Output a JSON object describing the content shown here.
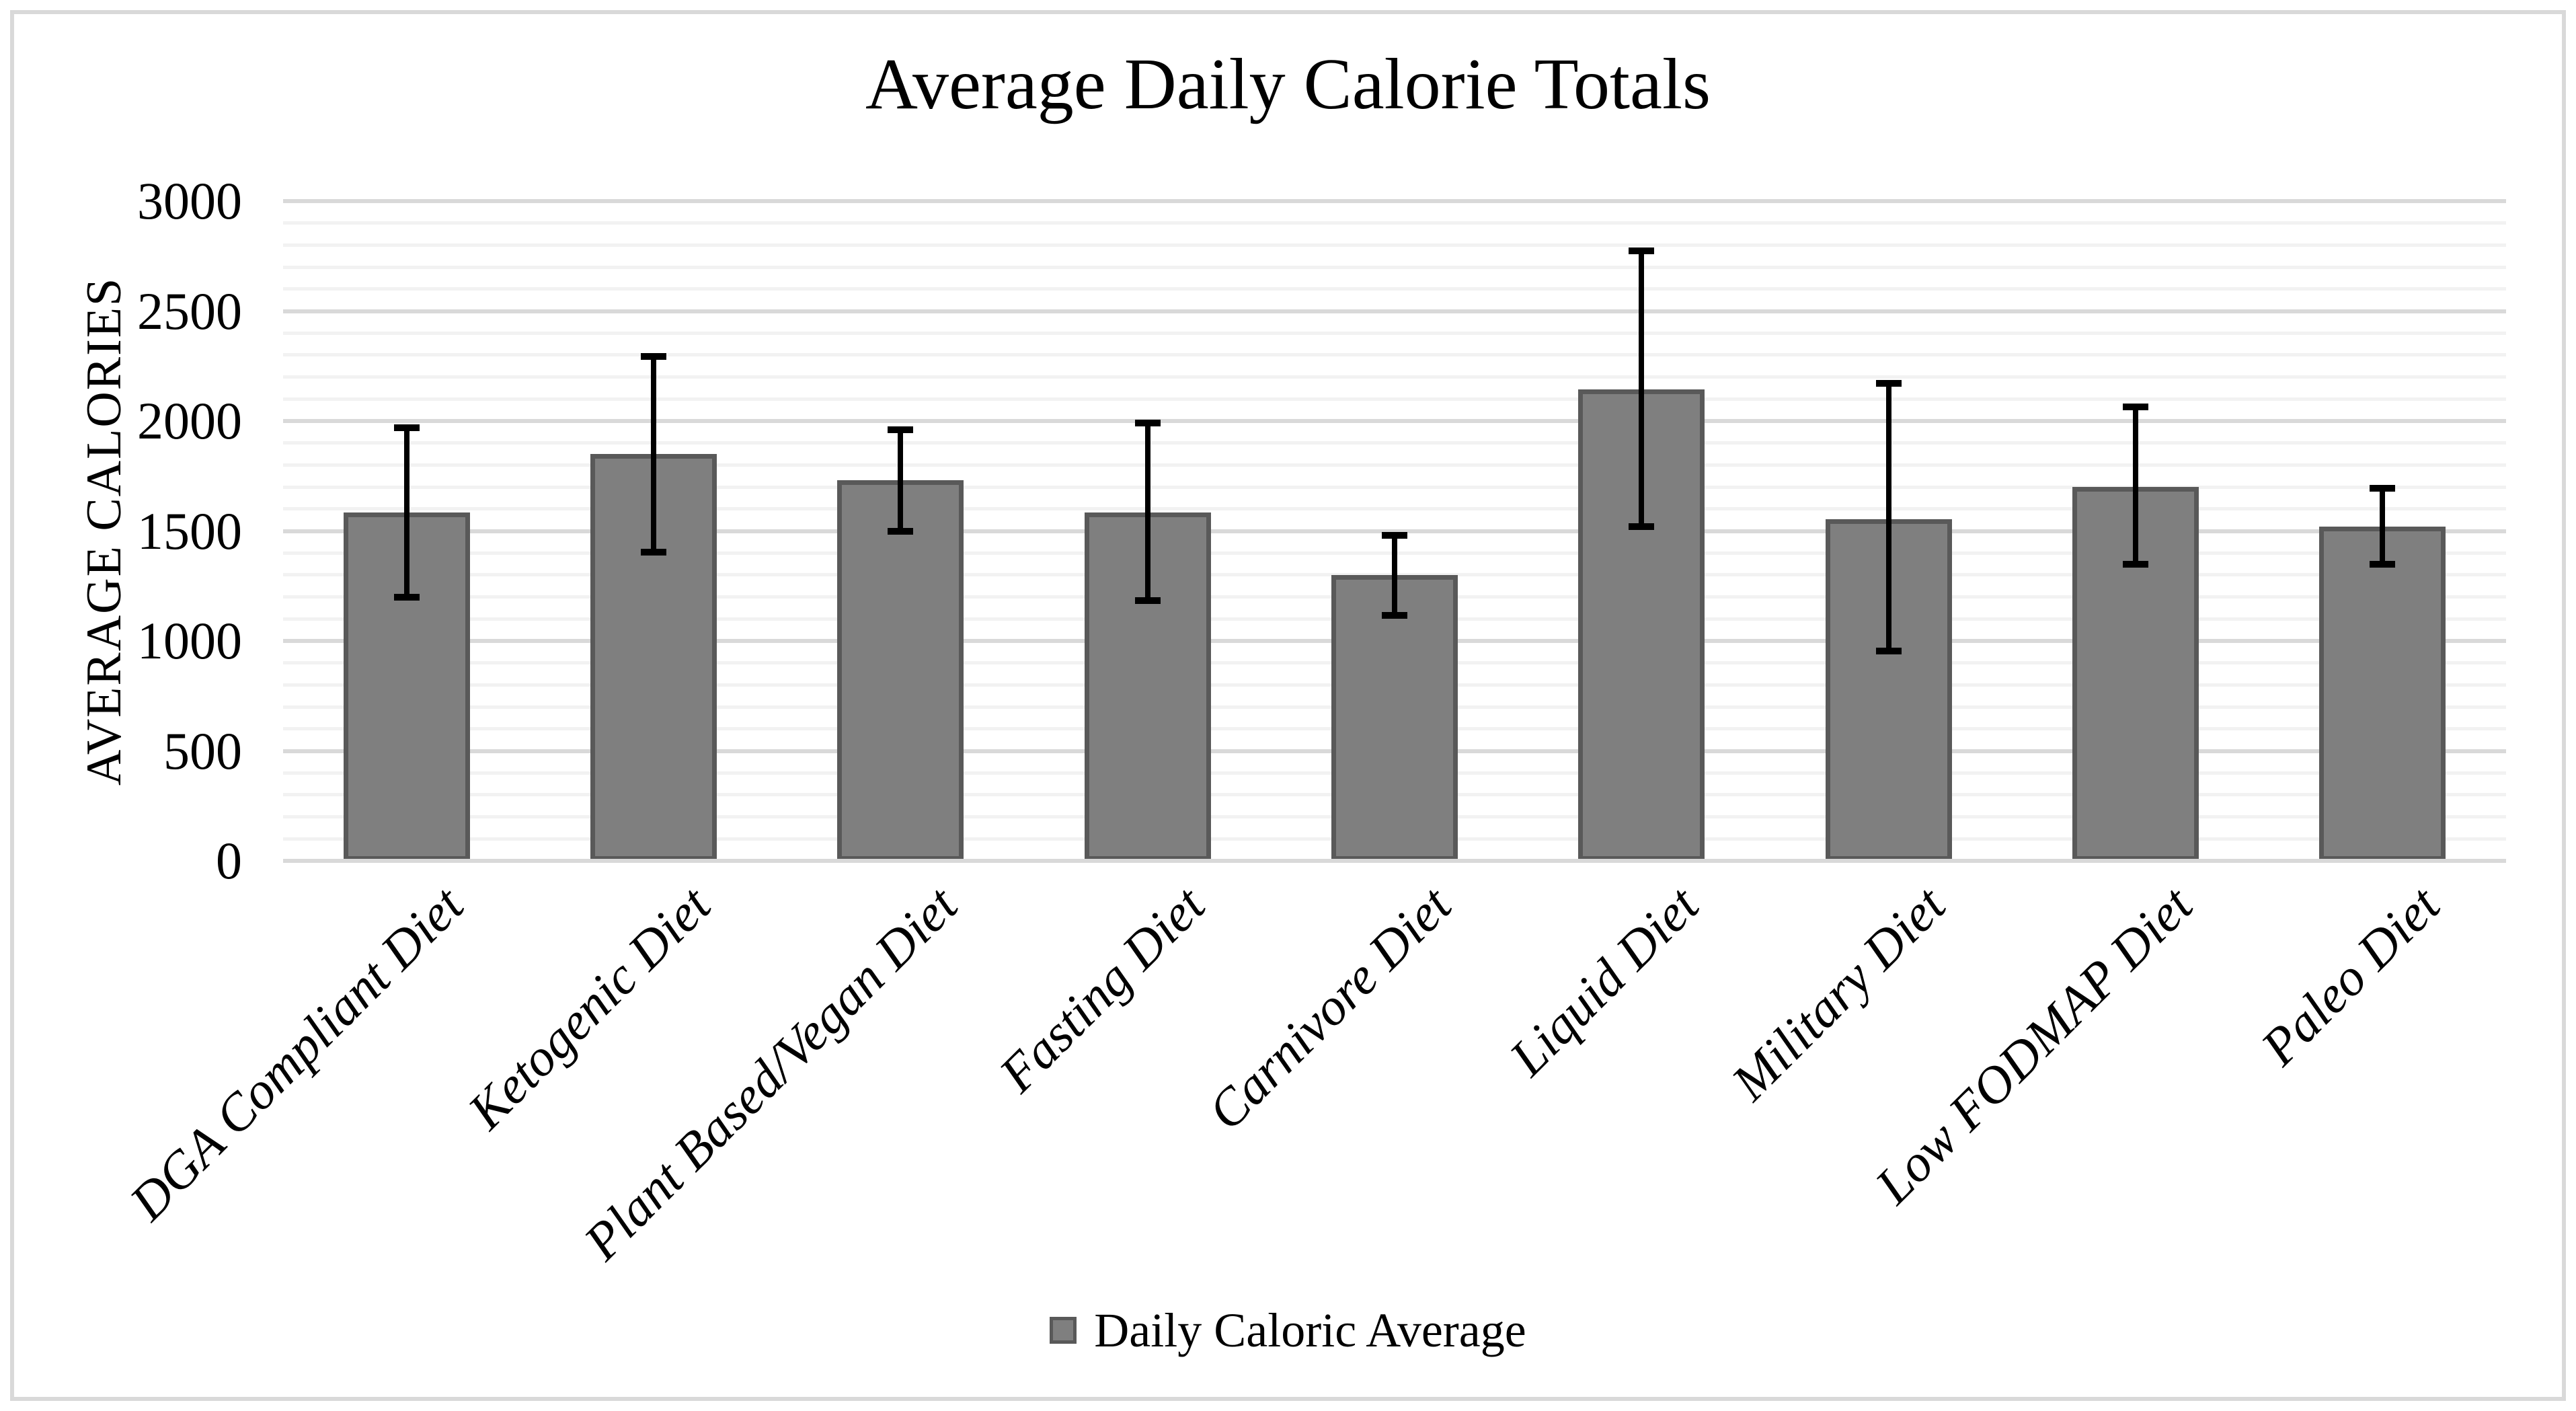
{
  "title": "Average Daily Calorie Totals",
  "y_axis": {
    "label": "AVERAGE CALORIES",
    "min": 0,
    "max": 3000,
    "major_step": 500,
    "minor_step": 100,
    "tick_labels": [
      "3000",
      "2500",
      "2000",
      "1500",
      "1000",
      "500",
      "0"
    ]
  },
  "legend": {
    "label": "Daily Caloric Average",
    "position": "bottom"
  },
  "colors": {
    "bar_fill": "#7F7F7F",
    "bar_border": "#595959",
    "error_bar": "#000000",
    "gridline_major": "#D9D9D9",
    "gridline_minor": "#F2F2F2",
    "axis_line": "#D9D9D9",
    "chart_border": "#D9D9D9",
    "background": "#FFFFFF",
    "text": "#000000"
  },
  "chart_data": {
    "type": "bar",
    "title": "Average Daily Calorie Totals",
    "xlabel": "",
    "ylabel": "AVERAGE CALORIES",
    "ylim": [
      0,
      3000
    ],
    "grid": {
      "major": 500,
      "minor": 100
    },
    "legend_position": "bottom",
    "categories": [
      "DGA Compliant Diet",
      "Ketogenic Diet",
      "Plant Based/Vegan Diet",
      "Fasting Diet",
      "Carnivore Diet",
      "Liquid Diet",
      "Military Diet",
      "Low FODMAP Diet",
      "Paleo Diet"
    ],
    "series": [
      {
        "name": "Daily Caloric Average",
        "values": [
          1585,
          1850,
          1730,
          1585,
          1300,
          2145,
          1555,
          1700,
          1520
        ],
        "error_high": [
          1970,
          2295,
          1960,
          1990,
          1480,
          2775,
          2170,
          2065,
          1695
        ],
        "error_low": [
          1200,
          1405,
          1500,
          1185,
          1115,
          1520,
          955,
          1350,
          1350
        ]
      }
    ]
  }
}
